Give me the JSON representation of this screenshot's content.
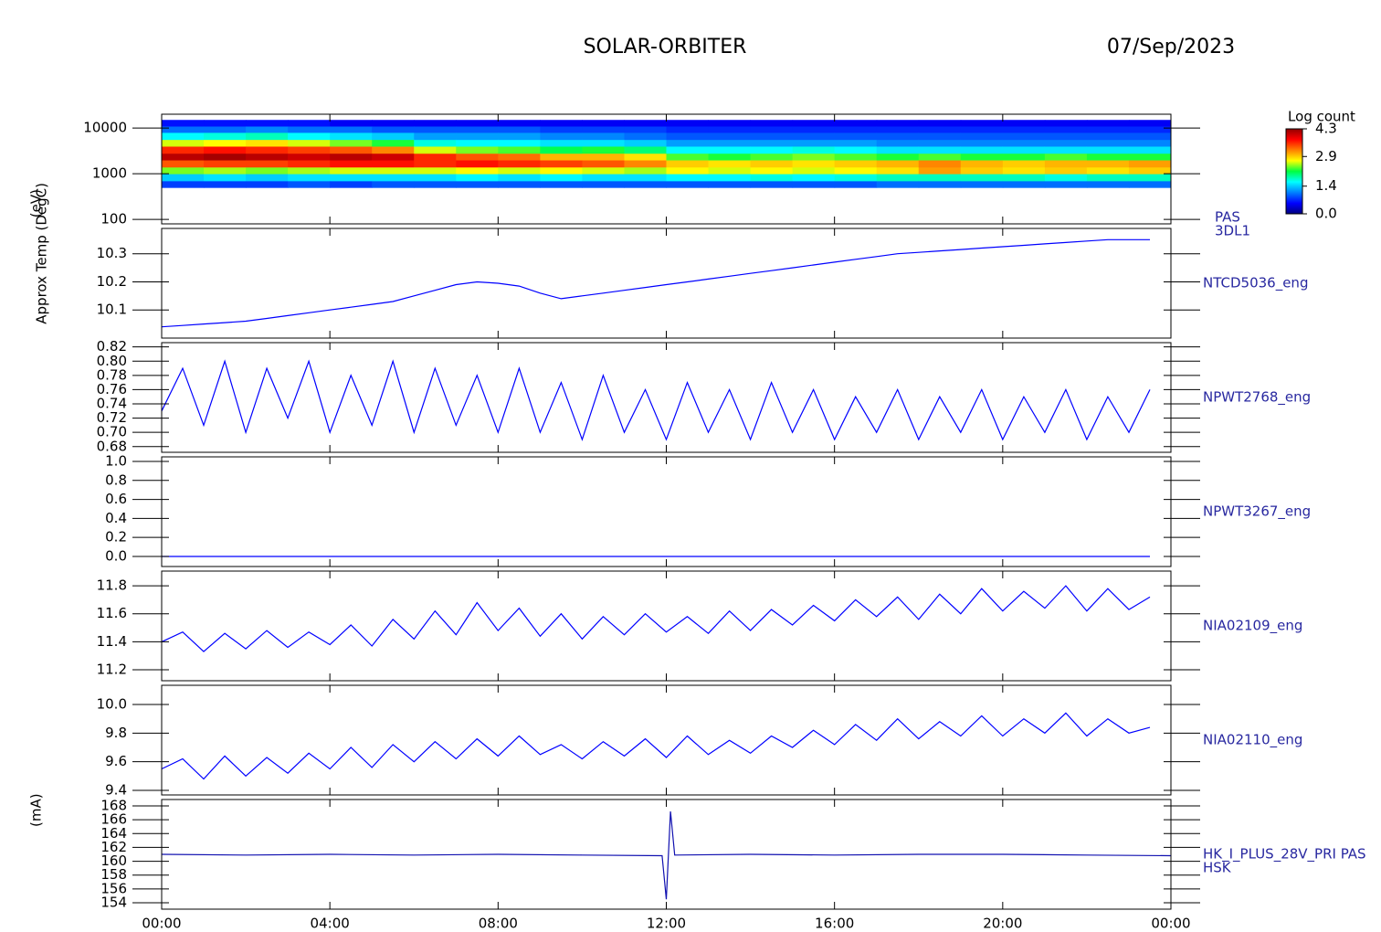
{
  "header": {
    "title": "SOLAR-ORBITER",
    "date": "07/Sep/2023"
  },
  "chart_data": [
    {
      "type": "heatmap",
      "ylabel": "(eV)",
      "label_lines": [
        "PAS",
        "3DL1"
      ],
      "log_y": true,
      "xlim": [
        0,
        24
      ],
      "ylim": [
        80,
        20000
      ],
      "yticks": [
        100,
        1000,
        10000
      ],
      "zlabel": "Log count",
      "zlim": [
        0,
        4.3
      ],
      "zticks": [
        {
          "value": 0,
          "label": "0.0"
        },
        1.4,
        2.9,
        4.3
      ],
      "colormap": [
        "#000080",
        "#0000ff",
        "#0080ff",
        "#00ffff",
        "#00ff40",
        "#ffff00",
        "#ff8000",
        "#ff0000",
        "#900000"
      ],
      "x_edges": [
        0,
        1,
        2,
        3,
        4,
        5,
        6,
        7,
        8,
        9,
        10,
        11,
        12,
        13,
        14,
        15,
        16,
        17,
        18,
        19,
        20,
        21,
        22,
        23,
        24
      ],
      "y_edges": [
        500,
        700,
        1000,
        1400,
        2000,
        2800,
        4000,
        5600,
        8000,
        11000,
        15000
      ],
      "z": [
        [
          0.8,
          1.4,
          2.4,
          3.4,
          4.1,
          3.6,
          2.6,
          1.6,
          1.0,
          0.6
        ],
        [
          0.8,
          1.5,
          2.5,
          3.5,
          4.2,
          3.7,
          2.7,
          1.7,
          1.0,
          0.6
        ],
        [
          0.8,
          1.4,
          2.4,
          3.5,
          4.1,
          3.6,
          2.8,
          1.8,
          1.1,
          0.6
        ],
        [
          0.9,
          1.5,
          2.5,
          3.6,
          4.0,
          3.5,
          2.6,
          1.6,
          1.0,
          0.6
        ],
        [
          0.8,
          1.5,
          2.6,
          3.7,
          4.1,
          3.4,
          2.4,
          1.5,
          1.0,
          0.5
        ],
        [
          0.9,
          1.5,
          2.6,
          3.7,
          4.0,
          3.2,
          2.2,
          1.4,
          0.9,
          0.5
        ],
        [
          0.9,
          1.5,
          2.6,
          3.6,
          3.6,
          2.6,
          1.7,
          1.2,
          0.9,
          0.5
        ],
        [
          0.9,
          1.6,
          2.7,
          3.7,
          3.4,
          2.4,
          1.6,
          1.2,
          0.9,
          0.5
        ],
        [
          0.9,
          1.5,
          2.6,
          3.6,
          3.3,
          2.3,
          1.6,
          1.2,
          0.9,
          0.5
        ],
        [
          0.9,
          1.6,
          2.7,
          3.5,
          3.0,
          2.1,
          1.5,
          1.1,
          0.8,
          0.5
        ],
        [
          0.9,
          1.5,
          2.6,
          3.4,
          3.0,
          2.2,
          1.5,
          1.1,
          0.8,
          0.5
        ],
        [
          0.9,
          1.5,
          2.5,
          3.2,
          2.8,
          2.0,
          1.4,
          1.0,
          0.8,
          0.5
        ],
        [
          0.9,
          1.6,
          2.7,
          2.9,
          2.3,
          1.6,
          1.2,
          0.9,
          0.7,
          0.5
        ],
        [
          0.9,
          1.6,
          2.6,
          2.8,
          2.2,
          1.6,
          1.2,
          0.9,
          0.7,
          0.5
        ],
        [
          0.9,
          1.7,
          2.7,
          2.9,
          2.3,
          1.6,
          1.2,
          0.9,
          0.7,
          0.5
        ],
        [
          0.9,
          1.6,
          2.6,
          2.8,
          2.4,
          1.7,
          1.2,
          0.9,
          0.7,
          0.5
        ],
        [
          0.9,
          1.7,
          2.7,
          2.9,
          2.3,
          1.6,
          1.2,
          0.9,
          0.7,
          0.5
        ],
        [
          1.0,
          1.8,
          2.8,
          3.0,
          2.2,
          1.5,
          1.1,
          0.9,
          0.7,
          0.5
        ],
        [
          1.0,
          1.8,
          3.1,
          3.2,
          2.3,
          1.5,
          1.1,
          0.9,
          0.7,
          0.5
        ],
        [
          1.0,
          1.8,
          2.9,
          3.0,
          2.2,
          1.5,
          1.1,
          0.9,
          0.7,
          0.5
        ],
        [
          1.0,
          1.8,
          2.8,
          2.9,
          2.2,
          1.5,
          1.1,
          0.9,
          0.7,
          0.5
        ],
        [
          1.0,
          1.7,
          2.9,
          3.0,
          2.3,
          1.5,
          1.1,
          0.9,
          0.7,
          0.5
        ],
        [
          1.0,
          1.8,
          2.8,
          3.0,
          2.2,
          1.5,
          1.1,
          0.9,
          0.7,
          0.5
        ],
        [
          1.0,
          1.8,
          2.9,
          3.1,
          2.2,
          1.5,
          1.1,
          0.9,
          0.7,
          0.5
        ]
      ]
    },
    {
      "type": "line",
      "ylabel": "Approx Temp (DegC)",
      "label_lines": [
        "NTCD5036_eng"
      ],
      "color": "#0000ff",
      "xlim": [
        0,
        24
      ],
      "ylim": [
        10.0,
        10.39
      ],
      "yticks": [
        10.1,
        10.2,
        10.3
      ],
      "x": [
        0,
        0.5,
        1,
        1.5,
        2,
        2.5,
        3,
        3.5,
        4,
        4.5,
        5,
        5.5,
        6,
        6.5,
        7,
        7.5,
        8,
        8.5,
        9,
        9.5,
        10,
        10.5,
        11,
        11.5,
        12,
        12.5,
        13,
        13.5,
        14,
        14.5,
        15,
        15.5,
        16,
        16.5,
        17,
        17.5,
        18,
        18.5,
        19,
        19.5,
        20,
        20.5,
        21,
        21.5,
        22,
        22.5,
        23,
        23.5
      ],
      "values": [
        10.04,
        10.045,
        10.05,
        10.055,
        10.06,
        10.07,
        10.08,
        10.09,
        10.1,
        10.11,
        10.12,
        10.13,
        10.15,
        10.17,
        10.19,
        10.2,
        10.195,
        10.185,
        10.16,
        10.14,
        10.15,
        10.16,
        10.17,
        10.18,
        10.19,
        10.2,
        10.21,
        10.22,
        10.23,
        10.24,
        10.25,
        10.26,
        10.27,
        10.28,
        10.29,
        10.3,
        10.305,
        10.31,
        10.315,
        10.32,
        10.325,
        10.33,
        10.335,
        10.34,
        10.345,
        10.35,
        10.35,
        10.35
      ]
    },
    {
      "type": "line",
      "label_lines": [
        "NPWT2768_eng"
      ],
      "color": "#0000ff",
      "xlim": [
        0,
        24
      ],
      "ylim": [
        0.672,
        0.826
      ],
      "yticks": [
        {
          "value": 0.68,
          "label": "0.68"
        },
        {
          "value": 0.7,
          "label": "0.70"
        },
        0.72,
        0.74,
        0.76,
        0.78,
        {
          "value": 0.8,
          "label": "0.80"
        },
        0.82
      ],
      "x": [
        0,
        0.5,
        1,
        1.5,
        2,
        2.5,
        3,
        3.5,
        4,
        4.5,
        5,
        5.5,
        6,
        6.5,
        7,
        7.5,
        8,
        8.5,
        9,
        9.5,
        10,
        10.5,
        11,
        11.5,
        12,
        12.5,
        13,
        13.5,
        14,
        14.5,
        15,
        15.5,
        16,
        16.5,
        17,
        17.5,
        18,
        18.5,
        19,
        19.5,
        20,
        20.5,
        21,
        21.5,
        22,
        22.5,
        23,
        23.5
      ],
      "values": [
        0.73,
        0.79,
        0.71,
        0.8,
        0.7,
        0.79,
        0.72,
        0.8,
        0.7,
        0.78,
        0.71,
        0.8,
        0.7,
        0.79,
        0.71,
        0.78,
        0.7,
        0.79,
        0.7,
        0.77,
        0.69,
        0.78,
        0.7,
        0.76,
        0.69,
        0.77,
        0.7,
        0.76,
        0.69,
        0.77,
        0.7,
        0.76,
        0.69,
        0.75,
        0.7,
        0.76,
        0.69,
        0.75,
        0.7,
        0.76,
        0.69,
        0.75,
        0.7,
        0.76,
        0.69,
        0.75,
        0.7,
        0.76
      ]
    },
    {
      "type": "line",
      "label_lines": [
        "NPWT3267_eng"
      ],
      "color": "#0000ff",
      "xlim": [
        0,
        24
      ],
      "ylim": [
        -0.106,
        1.048
      ],
      "yticks": [
        {
          "value": 0,
          "label": "0.0"
        },
        0.2,
        0.4,
        0.6,
        0.8,
        {
          "value": 1,
          "label": "1.0"
        }
      ],
      "x": [
        0,
        0.5,
        1,
        1.5,
        2,
        2.5,
        3,
        3.5,
        4,
        4.5,
        5,
        5.5,
        6,
        6.5,
        7,
        7.5,
        8,
        8.5,
        9,
        9.5,
        10,
        10.5,
        11,
        11.5,
        12,
        12.5,
        13,
        13.5,
        14,
        14.5,
        15,
        15.5,
        16,
        16.5,
        17,
        17.5,
        18,
        18.5,
        19,
        19.5,
        20,
        20.5,
        21,
        21.5,
        22,
        22.5,
        23,
        23.5
      ],
      "values": [
        0,
        0,
        0,
        0,
        0,
        0,
        0,
        0,
        0,
        0,
        0,
        0,
        0,
        0,
        0,
        0,
        0,
        0,
        0,
        0,
        0,
        0,
        0,
        0,
        0,
        0,
        0,
        0,
        0,
        0,
        0,
        0,
        0,
        0,
        0,
        0,
        0,
        0,
        0,
        0,
        0,
        0,
        0,
        0,
        0,
        0,
        0,
        0
      ]
    },
    {
      "type": "line",
      "label_lines": [
        "NIA02109_eng"
      ],
      "color": "#0000ff",
      "xlim": [
        0,
        24
      ],
      "ylim": [
        11.122,
        11.905
      ],
      "yticks": [
        11.2,
        11.4,
        11.6,
        11.8
      ],
      "x": [
        0,
        0.5,
        1,
        1.5,
        2,
        2.5,
        3,
        3.5,
        4,
        4.5,
        5,
        5.5,
        6,
        6.5,
        7,
        7.5,
        8,
        8.5,
        9,
        9.5,
        10,
        10.5,
        11,
        11.5,
        12,
        12.5,
        13,
        13.5,
        14,
        14.5,
        15,
        15.5,
        16,
        16.5,
        17,
        17.5,
        18,
        18.5,
        19,
        19.5,
        20,
        20.5,
        21,
        21.5,
        22,
        22.5,
        23,
        23.5
      ],
      "values": [
        11.4,
        11.47,
        11.33,
        11.46,
        11.35,
        11.48,
        11.36,
        11.47,
        11.38,
        11.52,
        11.37,
        11.56,
        11.42,
        11.62,
        11.45,
        11.68,
        11.48,
        11.64,
        11.44,
        11.6,
        11.42,
        11.58,
        11.45,
        11.6,
        11.47,
        11.58,
        11.46,
        11.62,
        11.48,
        11.63,
        11.52,
        11.66,
        11.55,
        11.7,
        11.58,
        11.72,
        11.56,
        11.74,
        11.6,
        11.78,
        11.62,
        11.76,
        11.64,
        11.8,
        11.62,
        11.78,
        11.63,
        11.72
      ]
    },
    {
      "type": "line",
      "label_lines": [
        "NIA02110_eng"
      ],
      "color": "#0000ff",
      "xlim": [
        0,
        24
      ],
      "ylim": [
        9.368,
        10.134
      ],
      "yticks": [
        9.4,
        9.6,
        9.8,
        {
          "value": 10,
          "label": "10.0"
        }
      ],
      "x": [
        0,
        0.5,
        1,
        1.5,
        2,
        2.5,
        3,
        3.5,
        4,
        4.5,
        5,
        5.5,
        6,
        6.5,
        7,
        7.5,
        8,
        8.5,
        9,
        9.5,
        10,
        10.5,
        11,
        11.5,
        12,
        12.5,
        13,
        13.5,
        14,
        14.5,
        15,
        15.5,
        16,
        16.5,
        17,
        17.5,
        18,
        18.5,
        19,
        19.5,
        20,
        20.5,
        21,
        21.5,
        22,
        22.5,
        23,
        23.5
      ],
      "values": [
        9.55,
        9.62,
        9.48,
        9.64,
        9.5,
        9.63,
        9.52,
        9.66,
        9.55,
        9.7,
        9.56,
        9.72,
        9.6,
        9.74,
        9.62,
        9.76,
        9.64,
        9.78,
        9.65,
        9.72,
        9.62,
        9.74,
        9.64,
        9.76,
        9.63,
        9.78,
        9.65,
        9.75,
        9.66,
        9.78,
        9.7,
        9.82,
        9.72,
        9.86,
        9.75,
        9.9,
        9.76,
        9.88,
        9.78,
        9.92,
        9.78,
        9.9,
        9.8,
        9.94,
        9.78,
        9.9,
        9.8,
        9.84
      ]
    },
    {
      "type": "line",
      "ylabel": "(mA)",
      "label_lines": [
        "HK_I_PLUS_28V_PRI PAS",
        "HSK"
      ],
      "color": "#1010b0",
      "xlim": [
        0,
        24
      ],
      "ylim": [
        153.08,
        168.92
      ],
      "yticks": [
        154,
        156,
        158,
        160,
        162,
        164,
        166,
        168
      ],
      "xticks": [
        {
          "value": 0,
          "label": "00:00"
        },
        {
          "value": 4,
          "label": "04:00"
        },
        {
          "value": 8,
          "label": "08:00"
        },
        {
          "value": 12,
          "label": "12:00"
        },
        {
          "value": 16,
          "label": "16:00"
        },
        {
          "value": 20,
          "label": "20:00"
        },
        {
          "value": 24,
          "label": "00:00"
        }
      ],
      "x": [
        0,
        2,
        4,
        6,
        8,
        10,
        11.9,
        12,
        12.1,
        12.2,
        14,
        16,
        18,
        20,
        22,
        24
      ],
      "values": [
        161,
        160.9,
        161,
        160.9,
        161,
        160.9,
        160.8,
        154.5,
        167.2,
        160.9,
        161,
        160.9,
        161,
        161,
        160.9,
        160.8
      ]
    }
  ]
}
